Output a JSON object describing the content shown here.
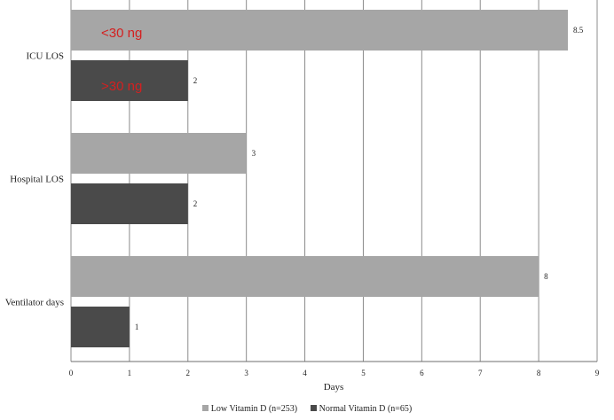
{
  "chart_data": {
    "type": "bar",
    "orientation": "horizontal",
    "categories": [
      "ICU LOS",
      "Hospital LOS",
      "Ventilator days"
    ],
    "series": [
      {
        "name": "Low Vitamin D (n=253)",
        "values": [
          8.5,
          3,
          8
        ],
        "color": "#a6a6a6"
      },
      {
        "name": "Normal Vitamin D (n=65)",
        "values": [
          2,
          2,
          1
        ],
        "color": "#4a4a4a"
      }
    ],
    "data_labels": [
      [
        "8.5",
        "3",
        "8"
      ],
      [
        "2",
        "2",
        "1"
      ]
    ],
    "xlabel": "Days",
    "xlim": [
      0,
      9
    ],
    "x_ticks": [
      "0",
      "1",
      "2",
      "3",
      "4",
      "5",
      "6",
      "7",
      "8",
      "9"
    ],
    "grid": true,
    "legend_position": "bottom",
    "annotations": [
      "<30 ng",
      ">30 ng"
    ]
  }
}
